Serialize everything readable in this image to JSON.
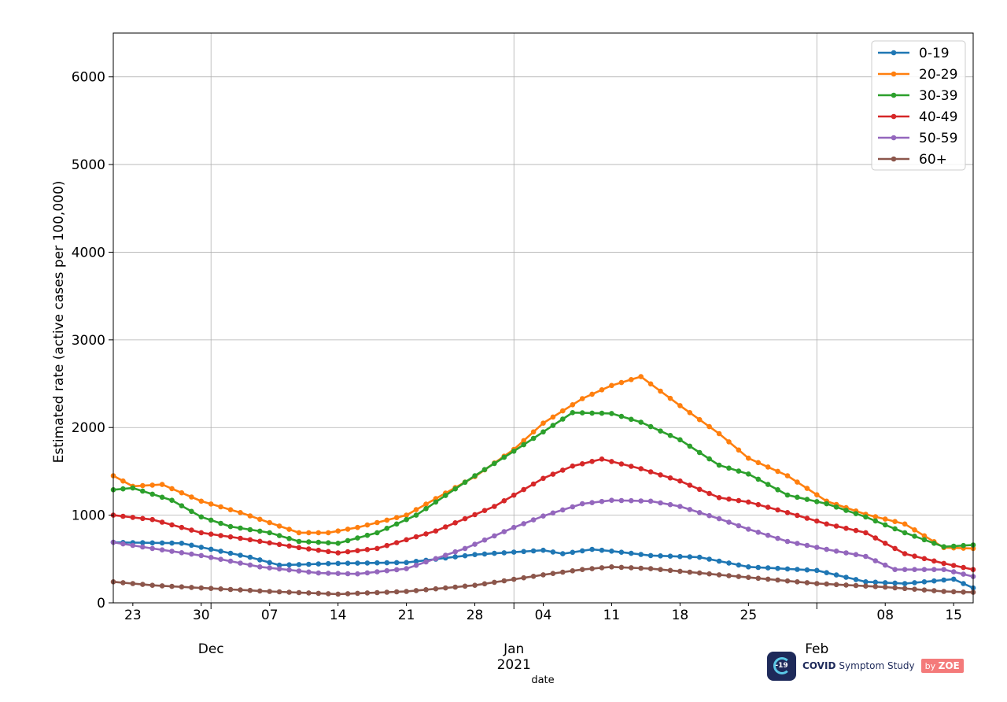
{
  "logo": {
    "badge_text": "-19",
    "brand_bold": "COVID",
    "brand_rest": "Symptom Study",
    "by": "by",
    "zoe": "ZOE"
  },
  "colors": {
    "0-19": "#1f77b4",
    "20-29": "#ff7f0e",
    "30-39": "#2ca02c",
    "40-49": "#d62728",
    "50-59": "#9467bd",
    "60+": "#8c564b"
  },
  "chart_data": {
    "type": "line",
    "title": "",
    "xlabel": "date",
    "ylabel": "Estimated rate (active cases per 100,000)",
    "x_start": "2020-11-21",
    "x_end": "2021-02-17",
    "ylim": [
      0,
      6500
    ],
    "yticks": [
      0,
      1000,
      2000,
      3000,
      4000,
      5000,
      6000
    ],
    "xticks_minor": [
      {
        "date": "2020-11-23",
        "label": "23"
      },
      {
        "date": "2020-11-30",
        "label": "30"
      },
      {
        "date": "2020-12-07",
        "label": "07"
      },
      {
        "date": "2020-12-14",
        "label": "14"
      },
      {
        "date": "2020-12-21",
        "label": "21"
      },
      {
        "date": "2020-12-28",
        "label": "28"
      },
      {
        "date": "2021-01-04",
        "label": "04"
      },
      {
        "date": "2021-01-11",
        "label": "11"
      },
      {
        "date": "2021-01-18",
        "label": "18"
      },
      {
        "date": "2021-01-25",
        "label": "25"
      },
      {
        "date": "2021-02-08",
        "label": "08"
      },
      {
        "date": "2021-02-15",
        "label": "15"
      }
    ],
    "xticks_major": [
      {
        "date": "2020-12-01",
        "label": "Dec"
      },
      {
        "date": "2021-01-01",
        "label": "Jan",
        "label2": "2021"
      },
      {
        "date": "2021-02-01",
        "label": "Feb"
      }
    ],
    "grid": true,
    "legend_position": "top-right",
    "series": [
      {
        "name": "0-19",
        "points": [
          [
            "2020-11-21",
            690
          ],
          [
            "2020-11-28",
            680
          ],
          [
            "2020-12-05",
            520
          ],
          [
            "2020-12-08",
            430
          ],
          [
            "2020-12-14",
            450
          ],
          [
            "2020-12-21",
            460
          ],
          [
            "2020-12-28",
            550
          ],
          [
            "2021-01-04",
            600
          ],
          [
            "2021-01-06",
            560
          ],
          [
            "2021-01-09",
            610
          ],
          [
            "2021-01-11",
            590
          ],
          [
            "2021-01-15",
            540
          ],
          [
            "2021-01-20",
            520
          ],
          [
            "2021-01-25",
            410
          ],
          [
            "2021-02-01",
            370
          ],
          [
            "2021-02-06",
            240
          ],
          [
            "2021-02-10",
            220
          ],
          [
            "2021-02-15",
            270
          ],
          [
            "2021-02-17",
            170
          ]
        ]
      },
      {
        "name": "20-29",
        "points": [
          [
            "2020-11-21",
            1450
          ],
          [
            "2020-11-23",
            1330
          ],
          [
            "2020-11-26",
            1350
          ],
          [
            "2020-11-30",
            1160
          ],
          [
            "2020-12-04",
            1030
          ],
          [
            "2020-12-10",
            800
          ],
          [
            "2020-12-13",
            800
          ],
          [
            "2020-12-16",
            860
          ],
          [
            "2020-12-21",
            1000
          ],
          [
            "2020-12-28",
            1440
          ],
          [
            "2021-01-01",
            1750
          ],
          [
            "2021-01-04",
            2050
          ],
          [
            "2021-01-08",
            2330
          ],
          [
            "2021-01-11",
            2480
          ],
          [
            "2021-01-14",
            2580
          ],
          [
            "2021-01-18",
            2250
          ],
          [
            "2021-01-22",
            1930
          ],
          [
            "2021-01-25",
            1650
          ],
          [
            "2021-01-29",
            1450
          ],
          [
            "2021-02-02",
            1160
          ],
          [
            "2021-02-06",
            1010
          ],
          [
            "2021-02-10",
            900
          ],
          [
            "2021-02-14",
            630
          ],
          [
            "2021-02-17",
            620
          ]
        ]
      },
      {
        "name": "30-39",
        "points": [
          [
            "2020-11-21",
            1290
          ],
          [
            "2020-11-23",
            1310
          ],
          [
            "2020-11-27",
            1170
          ],
          [
            "2020-11-30",
            980
          ],
          [
            "2020-12-03",
            870
          ],
          [
            "2020-12-07",
            800
          ],
          [
            "2020-12-10",
            700
          ],
          [
            "2020-12-14",
            680
          ],
          [
            "2020-12-18",
            800
          ],
          [
            "2020-12-22",
            1000
          ],
          [
            "2020-12-28",
            1450
          ],
          [
            "2021-01-01",
            1730
          ],
          [
            "2021-01-04",
            1950
          ],
          [
            "2021-01-07",
            2170
          ],
          [
            "2021-01-11",
            2160
          ],
          [
            "2021-01-14",
            2060
          ],
          [
            "2021-01-18",
            1860
          ],
          [
            "2021-01-22",
            1570
          ],
          [
            "2021-01-25",
            1470
          ],
          [
            "2021-01-29",
            1230
          ],
          [
            "2021-02-02",
            1130
          ],
          [
            "2021-02-06",
            980
          ],
          [
            "2021-02-10",
            800
          ],
          [
            "2021-02-14",
            640
          ],
          [
            "2021-02-17",
            660
          ]
        ]
      },
      {
        "name": "40-49",
        "points": [
          [
            "2020-11-21",
            1000
          ],
          [
            "2020-11-25",
            950
          ],
          [
            "2020-11-30",
            800
          ],
          [
            "2020-12-05",
            720
          ],
          [
            "2020-12-10",
            630
          ],
          [
            "2020-12-14",
            570
          ],
          [
            "2020-12-18",
            620
          ],
          [
            "2020-12-24",
            820
          ],
          [
            "2020-12-30",
            1100
          ],
          [
            "2021-01-04",
            1420
          ],
          [
            "2021-01-07",
            1560
          ],
          [
            "2021-01-10",
            1640
          ],
          [
            "2021-01-14",
            1530
          ],
          [
            "2021-01-18",
            1390
          ],
          [
            "2021-01-22",
            1200
          ],
          [
            "2021-01-25",
            1150
          ],
          [
            "2021-01-29",
            1030
          ],
          [
            "2021-02-02",
            900
          ],
          [
            "2021-02-06",
            800
          ],
          [
            "2021-02-10",
            560
          ],
          [
            "2021-02-14",
            450
          ],
          [
            "2021-02-17",
            380
          ]
        ]
      },
      {
        "name": "50-59",
        "points": [
          [
            "2020-11-21",
            690
          ],
          [
            "2020-11-25",
            620
          ],
          [
            "2020-11-30",
            540
          ],
          [
            "2020-12-06",
            410
          ],
          [
            "2020-12-12",
            340
          ],
          [
            "2020-12-16",
            330
          ],
          [
            "2020-12-21",
            390
          ],
          [
            "2020-12-27",
            620
          ],
          [
            "2021-01-01",
            860
          ],
          [
            "2021-01-04",
            990
          ],
          [
            "2021-01-08",
            1130
          ],
          [
            "2021-01-11",
            1170
          ],
          [
            "2021-01-15",
            1160
          ],
          [
            "2021-01-18",
            1100
          ],
          [
            "2021-01-22",
            960
          ],
          [
            "2021-01-25",
            840
          ],
          [
            "2021-01-29",
            700
          ],
          [
            "2021-02-02",
            610
          ],
          [
            "2021-02-06",
            530
          ],
          [
            "2021-02-09",
            380
          ],
          [
            "2021-02-14",
            380
          ],
          [
            "2021-02-17",
            300
          ]
        ]
      },
      {
        "name": "60+",
        "points": [
          [
            "2020-11-21",
            240
          ],
          [
            "2020-11-25",
            200
          ],
          [
            "2020-11-30",
            170
          ],
          [
            "2020-12-07",
            130
          ],
          [
            "2020-12-14",
            100
          ],
          [
            "2020-12-21",
            130
          ],
          [
            "2020-12-28",
            200
          ],
          [
            "2021-01-04",
            320
          ],
          [
            "2021-01-08",
            380
          ],
          [
            "2021-01-11",
            410
          ],
          [
            "2021-01-15",
            390
          ],
          [
            "2021-01-20",
            340
          ],
          [
            "2021-01-25",
            290
          ],
          [
            "2021-02-01",
            220
          ],
          [
            "2021-02-08",
            180
          ],
          [
            "2021-02-14",
            130
          ],
          [
            "2021-02-17",
            120
          ]
        ]
      }
    ]
  }
}
